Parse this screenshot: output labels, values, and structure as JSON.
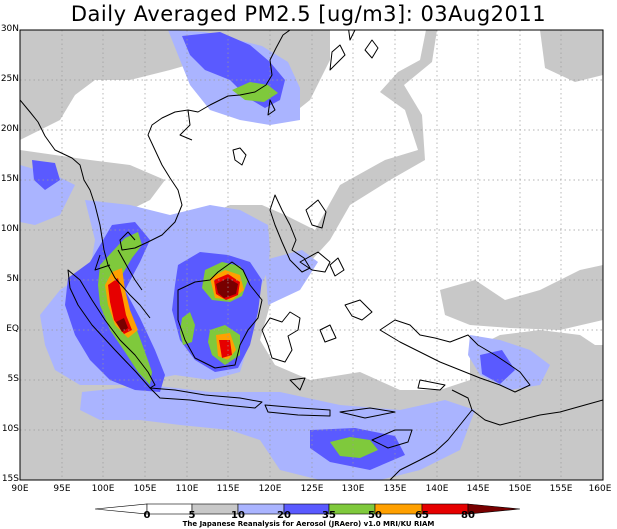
{
  "title": "Daily Averaged PM2.5 [ug/m3]: 03Aug2011",
  "map": {
    "lon_range": [
      90,
      160
    ],
    "lat_range": [
      -15,
      30
    ],
    "x_ticks": [
      "90E",
      "95E",
      "100E",
      "105E",
      "110E",
      "115E",
      "120E",
      "125E",
      "130E",
      "135E",
      "140E",
      "145E",
      "150E",
      "155E",
      "160E"
    ],
    "y_ticks": [
      "30N",
      "25N",
      "20N",
      "15N",
      "10N",
      "5N",
      "EQ",
      "5S",
      "10S",
      "15S"
    ],
    "grid": "dotted",
    "background_color": "#ffffff",
    "coastline_color": "#000000"
  },
  "colorbar": {
    "levels": [
      "0",
      "5",
      "10",
      "20",
      "35",
      "50",
      "65",
      "80"
    ],
    "colors": [
      "#ffffff",
      "#ffffff",
      "#c8c8c8",
      "#aab4ff",
      "#5a5aff",
      "#7fc93c",
      "#ffa000",
      "#e60000",
      "#780000"
    ]
  },
  "credit": "The Japanese Reanalysis for Aerosol (JRAero) v1.0 MRI/KU RIAM"
}
